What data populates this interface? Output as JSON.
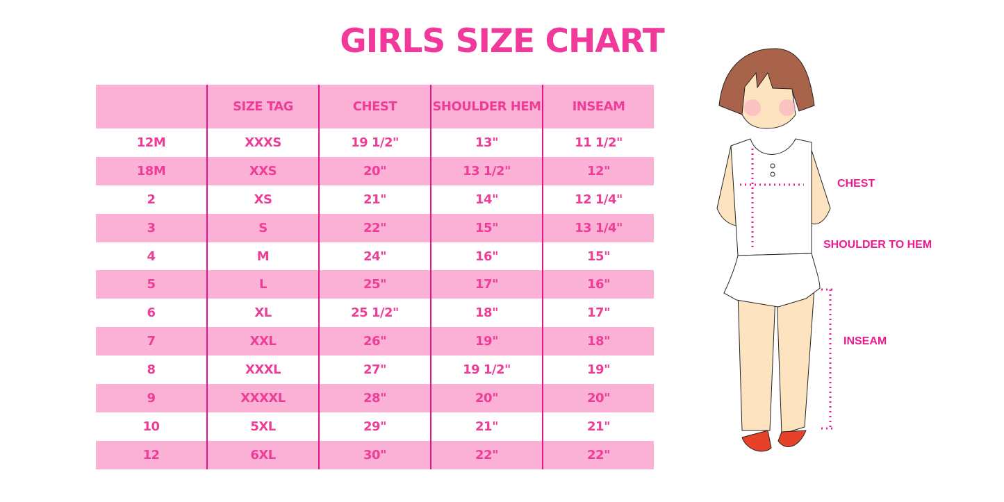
{
  "title": "GIRLS SIZE CHART",
  "table": {
    "headers": [
      "",
      "SIZE TAG",
      "CHEST",
      "SHOULDER HEM",
      "INSEAM"
    ],
    "rows": [
      [
        "12M",
        "XXXS",
        "19 1/2\"",
        "13\"",
        "11 1/2\""
      ],
      [
        "18M",
        "XXS",
        "20\"",
        "13 1/2\"",
        "12\""
      ],
      [
        "2",
        "XS",
        "21\"",
        "14\"",
        "12 1/4\""
      ],
      [
        "3",
        "S",
        "22\"",
        "15\"",
        "13 1/4\""
      ],
      [
        "4",
        "M",
        "24\"",
        "16\"",
        "15\""
      ],
      [
        "5",
        "L",
        "25\"",
        "17\"",
        "16\""
      ],
      [
        "6",
        "XL",
        "25 1/2\"",
        "18\"",
        "17\""
      ],
      [
        "7",
        "XXL",
        "26\"",
        "19\"",
        "18\""
      ],
      [
        "8",
        "XXXL",
        "27\"",
        "19 1/2\"",
        "19\""
      ],
      [
        "9",
        "XXXXL",
        "28\"",
        "20\"",
        "20\""
      ],
      [
        "10",
        "5XL",
        "29\"",
        "21\"",
        "21\""
      ],
      [
        "12",
        "6XL",
        "30\"",
        "22\"",
        "22\""
      ]
    ]
  },
  "figure": {
    "labels": {
      "chest": "CHEST",
      "shoulder_to_hem": "SHOULDER TO HEM",
      "inseam": "INSEAM"
    }
  },
  "colors": {
    "accent": "#ee3d96",
    "row_fill": "#fbb0d6",
    "divider": "#e0158a"
  }
}
